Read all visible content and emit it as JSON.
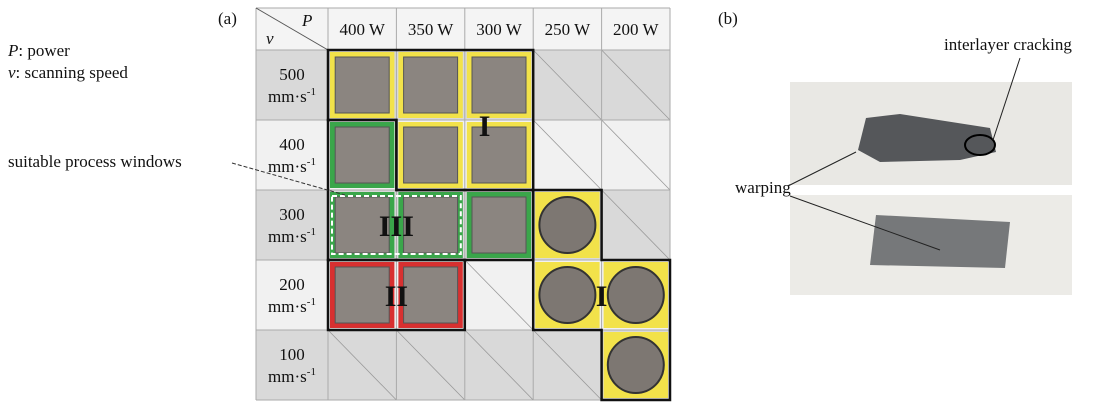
{
  "panel_a": {
    "label": "(a)",
    "legend": [
      {
        "symbol": "P",
        "text": ": power"
      },
      {
        "symbol": "v",
        "text": ": scanning speed"
      }
    ],
    "corner_col": "P",
    "corner_row": "v",
    "columns": [
      "400 W",
      "350 W",
      "300 W",
      "250 W",
      "200 W"
    ],
    "rows": [
      {
        "speed": "500",
        "unit": "mm·s",
        "exp": "-1"
      },
      {
        "speed": "400",
        "unit": "mm·s",
        "exp": "-1"
      },
      {
        "speed": "300",
        "unit": "mm·s",
        "exp": "-1"
      },
      {
        "speed": "200",
        "unit": "mm·s",
        "exp": "-1"
      },
      {
        "speed": "100",
        "unit": "mm·s",
        "exp": "-1"
      }
    ],
    "annotation": "suitable process windows",
    "regions": [
      "I",
      "II",
      "III",
      "I"
    ]
  },
  "panel_b": {
    "label": "(b)",
    "annotations": [
      "interlayer cracking",
      "warping"
    ]
  }
}
